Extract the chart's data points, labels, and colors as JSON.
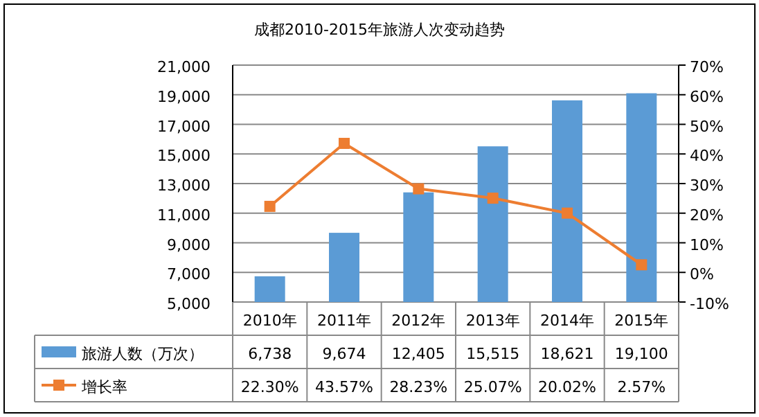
{
  "chart_data": {
    "type": "bar",
    "title": "成都2010-2015年旅游人次变动趋势",
    "categories": [
      "2010年",
      "2011年",
      "2012年",
      "2013年",
      "2014年",
      "2015年"
    ],
    "series": [
      {
        "name": "旅游人数（万次）",
        "color": "#5b9bd5",
        "values": [
          6738,
          9674,
          12405,
          15515,
          18621,
          19100
        ],
        "value_labels": [
          "6,738",
          "9,674",
          "12,405",
          "15,515",
          "18,621",
          "19,100"
        ]
      },
      {
        "name": "增长率",
        "type": "line",
        "axis": "y2",
        "color": "#ed7d31",
        "marker": "square",
        "values": [
          22.3,
          43.57,
          28.23,
          25.07,
          20.02,
          2.57
        ],
        "value_labels": [
          "22.30%",
          "43.57%",
          "28.23%",
          "25.07%",
          "20.02%",
          "2.57%"
        ]
      }
    ],
    "ylim": [
      5000,
      21000
    ],
    "yticks": [
      {
        "value": 5000,
        "label": "5,000"
      },
      {
        "value": 7000,
        "label": "7,000"
      },
      {
        "value": 9000,
        "label": "9,000"
      },
      {
        "value": 11000,
        "label": "11,000"
      },
      {
        "value": 13000,
        "label": "13,000"
      },
      {
        "value": 15000,
        "label": "15,000"
      },
      {
        "value": 17000,
        "label": "17,000"
      },
      {
        "value": 19000,
        "label": "19,000"
      },
      {
        "value": 21000,
        "label": "21,000"
      }
    ],
    "y2lim": [
      -10,
      70
    ],
    "y2ticks": [
      {
        "value": -10,
        "label": "-10%"
      },
      {
        "value": 0,
        "label": "0%"
      },
      {
        "value": 10,
        "label": "10%"
      },
      {
        "value": 20,
        "label": "20%"
      },
      {
        "value": 30,
        "label": "30%"
      },
      {
        "value": 40,
        "label": "40%"
      },
      {
        "value": 50,
        "label": "50%"
      },
      {
        "value": 60,
        "label": "60%"
      },
      {
        "value": 70,
        "label": "70%"
      }
    ],
    "grid": "y",
    "legend": "bottom"
  }
}
